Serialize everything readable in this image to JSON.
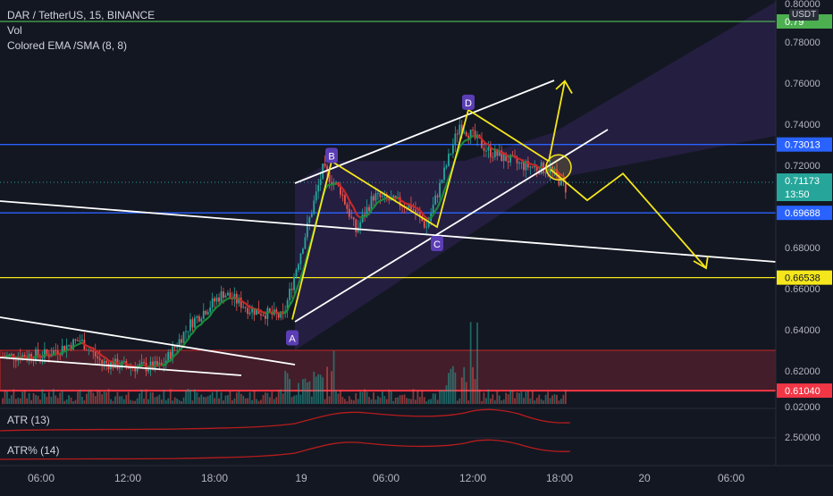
{
  "header": {
    "symbol_line": "DAR / TetherUS, 15, BINANCE",
    "vol_label": "Vol",
    "ema_label": "Colored EMA /SMA (8, 8)",
    "currency_badge": "USDT"
  },
  "price_axis": {
    "ticks": [
      "0.78000",
      "0.76000",
      "0.74000",
      "0.72000",
      "0.68000",
      "0.66000",
      "0.64000",
      "0.62000",
      "0.02000",
      "2.50000"
    ],
    "top_partial": "0.80000"
  },
  "time_axis": {
    "ticks": [
      "06:00",
      "12:00",
      "18:00",
      "19",
      "06:00",
      "12:00",
      "18:00",
      "20",
      "06:00"
    ]
  },
  "price_labels": [
    {
      "text": "0.73013",
      "color": "#2962ff"
    },
    {
      "text": "0.71173",
      "color": "#26a69a"
    },
    {
      "text": "13:50",
      "color": "#26a69a"
    },
    {
      "text": "0.69688",
      "color": "#2962ff"
    },
    {
      "text": "0.66538",
      "color": "#f5e71b"
    },
    {
      "text": "0.61040",
      "color": "#f23645"
    },
    {
      "text": "0.79",
      "color": "#4caf50"
    }
  ],
  "pattern_points": [
    "A",
    "B",
    "C",
    "D"
  ],
  "indicators": {
    "atr_label": "ATR (13)",
    "atrp_label": "ATR% (14)"
  },
  "colors": {
    "background": "#131722",
    "up": "#26a69a",
    "down": "#ef5350",
    "pattern": "#f5e71b",
    "label_purple": "#5b3db5",
    "indicator_line": "#b71c1c"
  },
  "chart_data": {
    "type": "candlestick",
    "title": "DAR / TetherUS, 15, BINANCE",
    "xlabel": "",
    "ylabel": "",
    "ylim": [
      0.615,
      0.8
    ],
    "grid": false,
    "horizontal_levels": [
      {
        "value": 0.79,
        "color": "#4caf50"
      },
      {
        "value": 0.73013,
        "color": "#2962ff"
      },
      {
        "value": 0.69688,
        "color": "#2962ff"
      },
      {
        "value": 0.66538,
        "color": "#f5e71b"
      },
      {
        "value": 0.6104,
        "color": "#f23645"
      }
    ],
    "harmonic_pattern": [
      {
        "label": "A",
        "value": 0.645
      },
      {
        "label": "B",
        "value": 0.722
      },
      {
        "label": "C",
        "value": 0.69
      },
      {
        "label": "D",
        "value": 0.747
      }
    ],
    "last_price": 0.71173,
    "projected_path": [
      0.722,
      0.703,
      0.716,
      0.67
    ]
  }
}
